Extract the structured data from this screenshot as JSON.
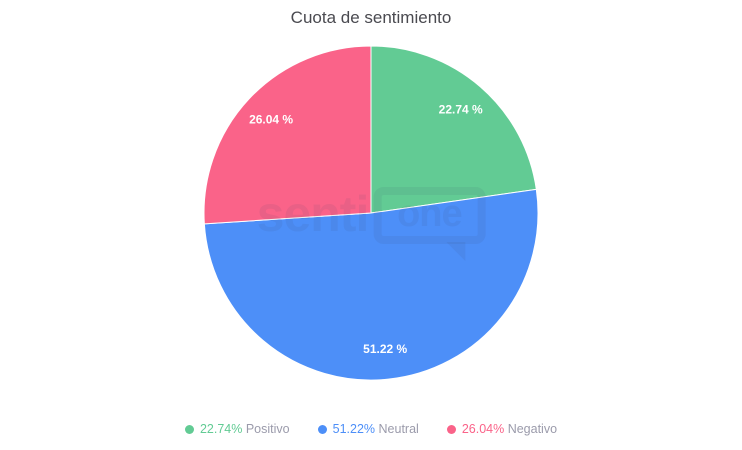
{
  "chart_data": {
    "type": "pie",
    "title": "Cuota de sentimiento",
    "start_angle_deg": 0,
    "direction": "clockwise",
    "legend_position": "bottom",
    "categories": [
      "Positivo",
      "Neutral",
      "Negativo"
    ],
    "values": [
      22.74,
      51.22,
      26.04
    ],
    "series": [
      {
        "name": "Positivo",
        "value": 22.74,
        "slice_label": "22.74 %",
        "legend_value": "22.74%",
        "color": "#62cb94"
      },
      {
        "name": "Neutral",
        "value": 51.22,
        "slice_label": "51.22 %",
        "legend_value": "51.22%",
        "color": "#4d8ff8"
      },
      {
        "name": "Negativo",
        "value": 26.04,
        "slice_label": "26.04 %",
        "legend_value": "26.04%",
        "color": "#fa6389"
      }
    ]
  },
  "watermark": {
    "prefix": "senti",
    "bubble_text": "one"
  },
  "colors": {
    "title_text": "#4a4a50",
    "legend_label_text": "#9b9bab",
    "slice_label_text": "#ffffff",
    "slice_border": "#ffffff",
    "background": "#ffffff"
  }
}
